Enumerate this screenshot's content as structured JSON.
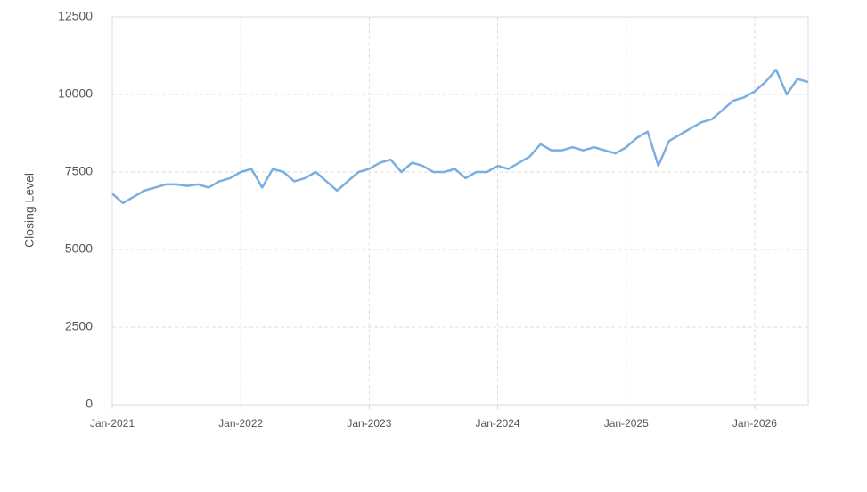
{
  "chart_data": {
    "type": "line",
    "y_label": "Closing Level",
    "x": [
      "2021-01",
      "2021-02",
      "2021-03",
      "2021-04",
      "2021-05",
      "2021-06",
      "2021-07",
      "2021-08",
      "2021-09",
      "2021-10",
      "2021-11",
      "2021-12",
      "2022-01",
      "2022-02",
      "2022-03",
      "2022-04",
      "2022-05",
      "2022-06",
      "2022-07",
      "2022-08",
      "2022-09",
      "2022-10",
      "2022-11",
      "2022-12",
      "2023-01",
      "2023-02",
      "2023-03",
      "2023-04",
      "2023-05",
      "2023-06",
      "2023-07",
      "2023-08",
      "2023-09",
      "2023-10",
      "2023-11",
      "2023-12",
      "2024-01",
      "2024-02",
      "2024-03",
      "2024-04",
      "2024-05",
      "2024-06",
      "2024-07",
      "2024-08",
      "2024-09",
      "2024-10",
      "2024-11",
      "2024-12",
      "2025-01",
      "2025-02",
      "2025-03",
      "2025-04",
      "2025-05",
      "2025-06",
      "2025-07",
      "2025-08",
      "2025-09",
      "2025-10",
      "2025-11",
      "2025-12",
      "2026-01",
      "2026-02",
      "2026-03",
      "2026-04",
      "2026-05",
      "2026-06"
    ],
    "series": [
      {
        "name": "Closing Level",
        "color": "#7aafe0",
        "values": [
          6800,
          6500,
          6700,
          6900,
          7000,
          7100,
          7100,
          7050,
          7100,
          7000,
          7200,
          7300,
          7500,
          7600,
          7000,
          7600,
          7500,
          7200,
          7300,
          7500,
          7200,
          6900,
          7200,
          7500,
          7600,
          7800,
          7900,
          7500,
          7800,
          7700,
          7500,
          7500,
          7600,
          7300,
          7500,
          7500,
          7700,
          7600,
          7800,
          8000,
          8400,
          8200,
          8200,
          8300,
          8200,
          8300,
          8200,
          8100,
          8300,
          8600,
          8800,
          7700,
          8500,
          8700,
          8900,
          9100,
          9200,
          9500,
          9800,
          9900,
          10100,
          10400,
          10800,
          10000,
          10500,
          10400
        ]
      }
    ],
    "xlim": [
      "2021-01",
      "2026-06"
    ],
    "xticks": [
      {
        "value": "2021-01",
        "label": "Jan-2021"
      },
      {
        "value": "2022-01",
        "label": "Jan-2022"
      },
      {
        "value": "2023-01",
        "label": "Jan-2023"
      },
      {
        "value": "2024-01",
        "label": "Jan-2024"
      },
      {
        "value": "2025-01",
        "label": "Jan-2025"
      },
      {
        "value": "2026-01",
        "label": "Jan-2026"
      }
    ],
    "ylim": [
      0,
      12500
    ],
    "yticks": [
      0,
      2500,
      5000,
      7500,
      10000,
      12500
    ],
    "grid": true
  }
}
